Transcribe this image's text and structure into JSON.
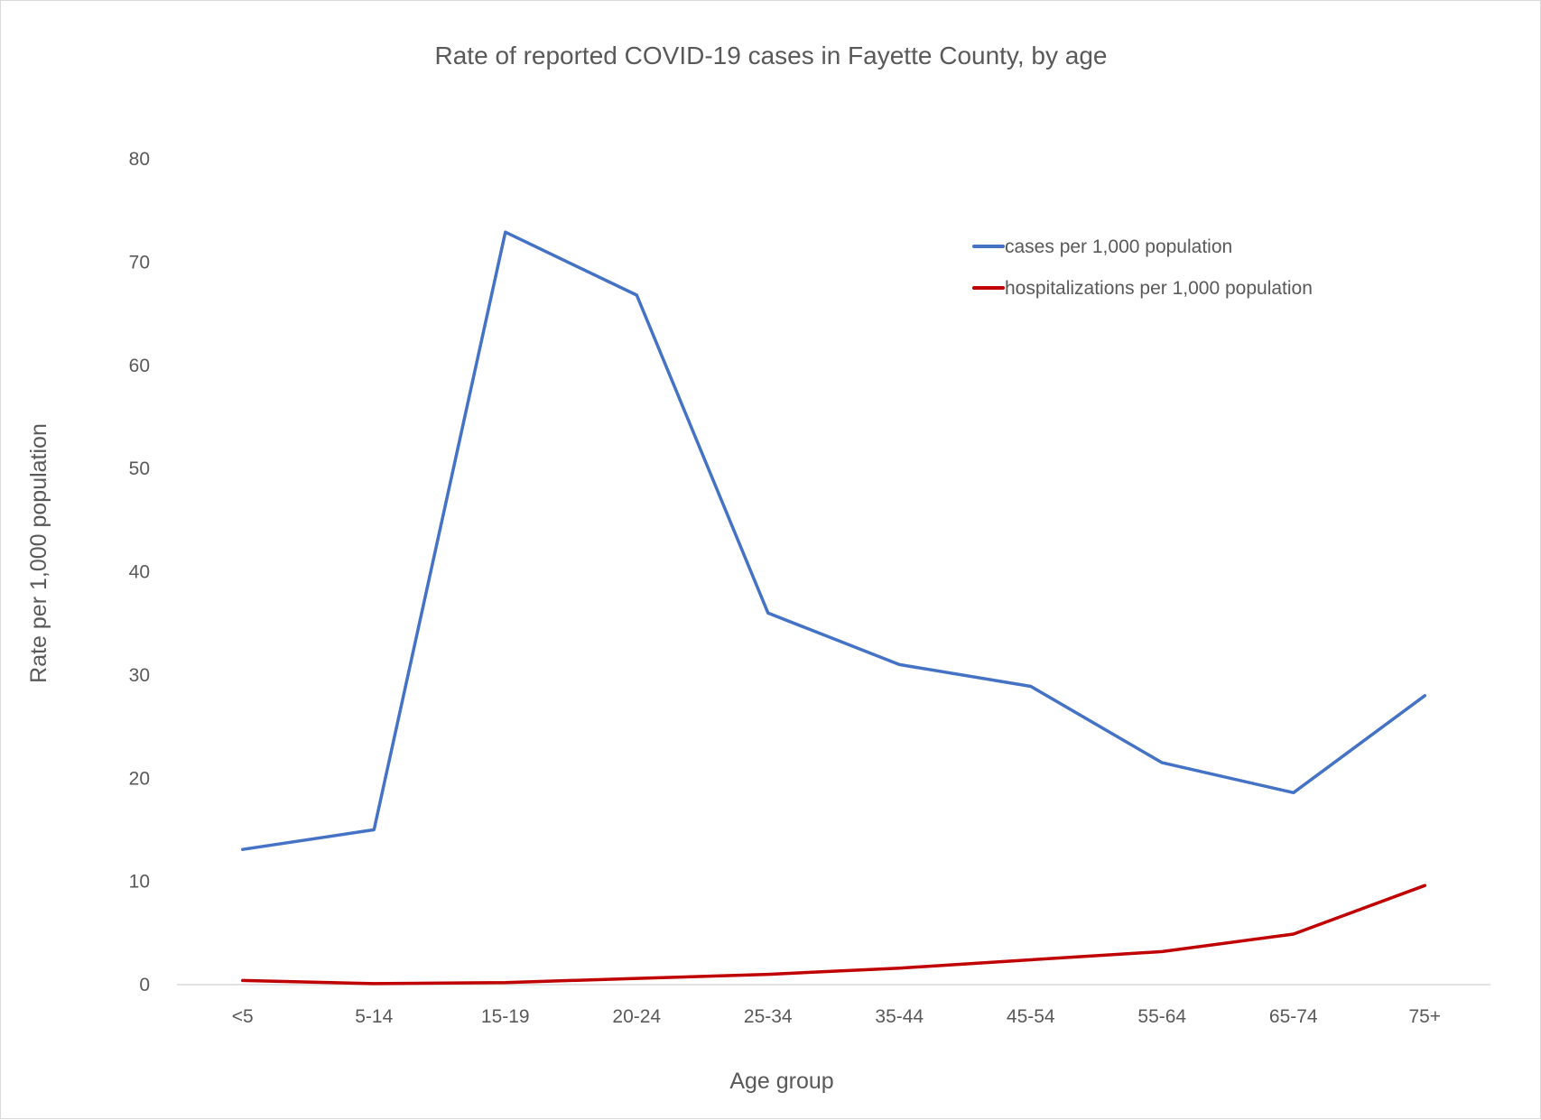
{
  "chart_data": {
    "type": "line",
    "title": "Rate of reported COVID-19 cases in Fayette County, by age",
    "xlabel": "Age group",
    "ylabel": "Rate per 1,000 population",
    "categories": [
      "<5",
      "5-14",
      "15-19",
      "20-24",
      "25-34",
      "35-44",
      "45-54",
      "55-64",
      "65-74",
      "75+"
    ],
    "ylim": [
      0,
      80
    ],
    "yticks": [
      0,
      10,
      20,
      30,
      40,
      50,
      60,
      70,
      80
    ],
    "grid": false,
    "legend_position": "top-right",
    "series": [
      {
        "name": "cases per 1,000 population",
        "color": "#4472c4",
        "values": [
          13.1,
          15.0,
          72.9,
          66.8,
          36.0,
          31.0,
          28.9,
          21.5,
          18.6,
          28.0
        ]
      },
      {
        "name": "hospitalizations per 1,000 population",
        "color": "#c00000",
        "values": [
          0.4,
          0.1,
          0.2,
          0.6,
          1.0,
          1.6,
          2.4,
          3.2,
          4.9,
          9.6
        ]
      }
    ]
  }
}
